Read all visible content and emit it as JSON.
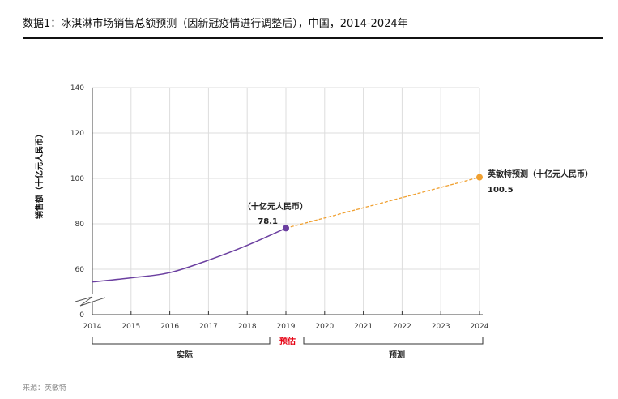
{
  "title": "数据1：冰淇淋市场销售总额预测（因新冠疫情进行调整后），中国，2014-2024年",
  "source": "来源：英敏特",
  "chart_data": {
    "type": "line",
    "title": "数据1：冰淇淋市场销售总额预测（因新冠疫情进行调整后），中国，2014-2024年",
    "ylabel": "销售额（十亿元人民币）",
    "xlabel": "",
    "x": [
      2014,
      2015,
      2016,
      2017,
      2018,
      2019,
      2020,
      2021,
      2022,
      2023,
      2024
    ],
    "x_ticks": [
      "2014",
      "2015",
      "2016",
      "2017",
      "2018",
      "2019",
      "2020",
      "2021",
      "2022",
      "2023",
      "2024"
    ],
    "y_ticks": [
      "0",
      "60",
      "80",
      "100",
      "120",
      "140"
    ],
    "ylim": [
      0,
      140
    ],
    "y_axis_break": "between 0 and ~50",
    "grid": true,
    "series": [
      {
        "name": "实际",
        "color": "#6b3fa0",
        "style": "solid",
        "x": [
          2014,
          2015,
          2016,
          2017,
          2018,
          2019
        ],
        "y": [
          54.4,
          56.2,
          58.5,
          64.0,
          70.5,
          78.1
        ]
      },
      {
        "name": "预测",
        "color": "#f0a030",
        "style": "dashed",
        "x": [
          2019,
          2024
        ],
        "y": [
          78.1,
          100.5
        ]
      }
    ],
    "annotations": {
      "point_2019_unit": "（十亿元人民币）",
      "point_2019_value": "78.1",
      "point_2024_label": "英敏特预测（十亿元人民币）",
      "point_2024_value": "100.5"
    },
    "period_labels": {
      "actual": "实际",
      "estimate": "预估",
      "forecast": "预测"
    },
    "estimate_color": "#e60012"
  }
}
